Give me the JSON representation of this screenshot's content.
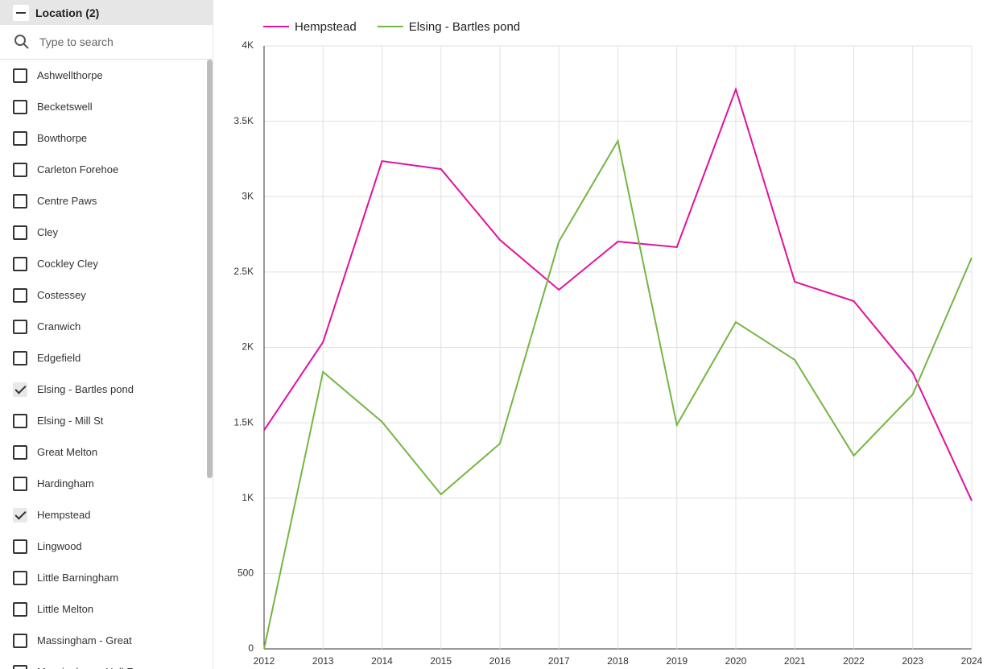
{
  "filter": {
    "title": "Location (2)",
    "search_placeholder": "Type to search",
    "items": [
      {
        "label": "Ashwellthorpe",
        "checked": false
      },
      {
        "label": "Becketswell",
        "checked": false
      },
      {
        "label": "Bowthorpe",
        "checked": false
      },
      {
        "label": "Carleton Forehoe",
        "checked": false
      },
      {
        "label": "Centre Paws",
        "checked": false
      },
      {
        "label": "Cley",
        "checked": false
      },
      {
        "label": "Cockley Cley",
        "checked": false
      },
      {
        "label": "Costessey",
        "checked": false
      },
      {
        "label": "Cranwich",
        "checked": false
      },
      {
        "label": "Edgefield",
        "checked": false
      },
      {
        "label": "Elsing - Bartles pond",
        "checked": true
      },
      {
        "label": "Elsing - Mill St",
        "checked": false
      },
      {
        "label": "Great Melton",
        "checked": false
      },
      {
        "label": "Hardingham",
        "checked": false
      },
      {
        "label": "Hempstead",
        "checked": true
      },
      {
        "label": "Lingwood",
        "checked": false
      },
      {
        "label": "Little Barningham",
        "checked": false
      },
      {
        "label": "Little Melton",
        "checked": false
      },
      {
        "label": "Massingham - Great",
        "checked": false
      },
      {
        "label": "Massingham - Hall Farm",
        "checked": false
      }
    ]
  },
  "chart_data": {
    "type": "line",
    "categories": [
      "2012",
      "2013",
      "2014",
      "2015",
      "2016",
      "2017",
      "2018",
      "2019",
      "2020",
      "2021",
      "2022",
      "2023",
      "2024"
    ],
    "series": [
      {
        "name": "Hempstead",
        "color": "#e0119d",
        "values": [
          1450,
          2035,
          3236,
          3183,
          2713,
          2382,
          2702,
          2665,
          3712,
          2435,
          2307,
          1832,
          983
        ]
      },
      {
        "name": "Elsing - Bartles pond",
        "color": "#74b643",
        "values": [
          0,
          1837,
          1506,
          1025,
          1362,
          2702,
          3370,
          1485,
          2168,
          1917,
          1282,
          1688,
          2595
        ]
      }
    ],
    "ylim": [
      0,
      4000
    ],
    "yticks": [
      0,
      500,
      {
        "value": 1000,
        "label": "1K"
      },
      {
        "value": 1500,
        "label": "1.5K"
      },
      {
        "value": 2000,
        "label": "2K"
      },
      {
        "value": 2500,
        "label": "2.5K"
      },
      {
        "value": 3000,
        "label": "3K"
      },
      {
        "value": 3500,
        "label": "3.5K"
      },
      {
        "value": 4000,
        "label": "4K"
      }
    ],
    "grid": true,
    "legend": "top-left"
  }
}
